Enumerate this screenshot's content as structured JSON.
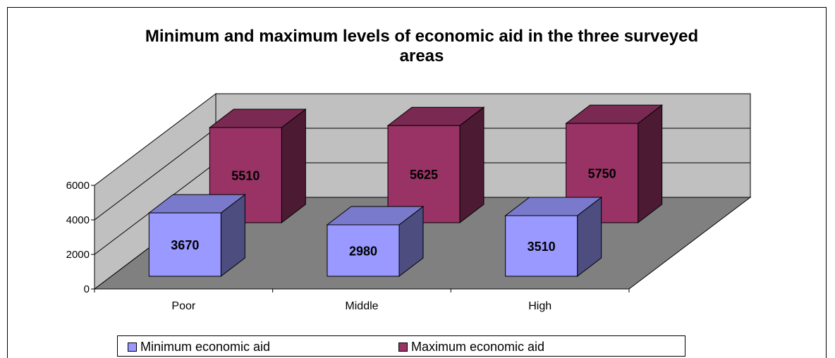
{
  "chart_data": {
    "type": "bar",
    "title": "Minimum and maximum levels of economic aid in the three surveyed areas",
    "title_lines": [
      "Minimum and maximum levels of economic aid in the three surveyed",
      "areas"
    ],
    "categories": [
      "Poor",
      "Middle",
      "High"
    ],
    "series": [
      {
        "name": "Minimum economic aid",
        "values": [
          3670,
          2980,
          3510
        ],
        "color": "#9999FF"
      },
      {
        "name": "Maximum economic aid",
        "values": [
          5510,
          5625,
          5750
        ],
        "color": "#993366"
      }
    ],
    "y_ticks": [
      "0",
      "2000",
      "4000",
      "6000"
    ],
    "ylim": [
      0,
      6000
    ],
    "legend_position": "bottom",
    "grid": true,
    "style": "3d-clustered-column",
    "wall_color": "#C0C0C0",
    "floor_color": "#808080"
  }
}
